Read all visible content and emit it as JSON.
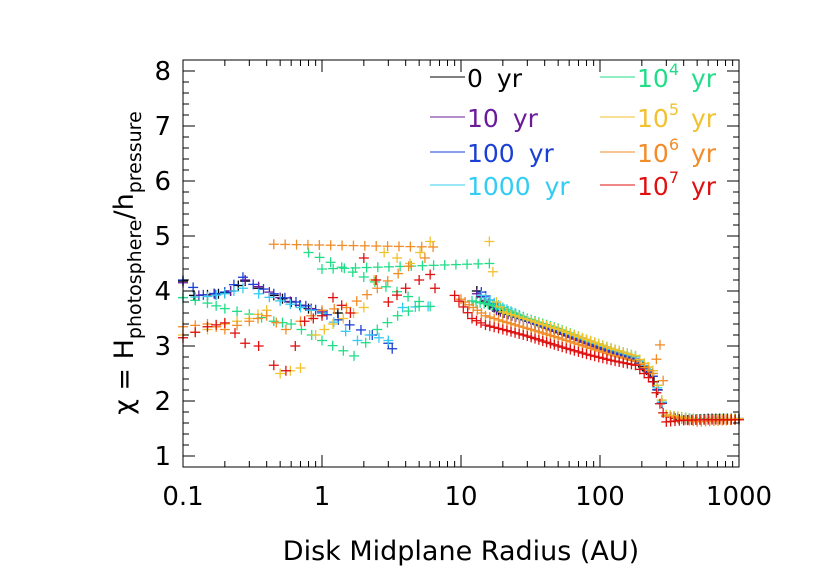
{
  "chart_data": {
    "type": "scatter",
    "title": "",
    "xlabel": "Disk Midplane Radius (AU)",
    "ylabel": {
      "prefix": "χ = H",
      "sub1": "photosphere",
      "slash": "/h",
      "sub2": "pressure"
    },
    "xscale": "log",
    "xlim": [
      0.1,
      1000
    ],
    "ylim": [
      0.8,
      8.2
    ],
    "xticks": [
      {
        "value": 0.1,
        "label": "0.1"
      },
      {
        "value": 1,
        "label": "1"
      },
      {
        "value": 10,
        "label": "10"
      },
      {
        "value": 100,
        "label": "100"
      },
      {
        "value": 1000,
        "label": "1000"
      }
    ],
    "yticks": [
      {
        "value": 1,
        "label": "1"
      },
      {
        "value": 2,
        "label": "2"
      },
      {
        "value": 3,
        "label": "3"
      },
      {
        "value": 4,
        "label": "4"
      },
      {
        "value": 5,
        "label": "5"
      },
      {
        "value": 6,
        "label": "6"
      },
      {
        "value": 7,
        "label": "7"
      },
      {
        "value": 8,
        "label": "8"
      }
    ],
    "legend_position": "top-right",
    "series": [
      {
        "name": "0 yr",
        "base": "0",
        "exp": "",
        "unit": "yr",
        "color": "#000000",
        "inner": [
          [
            0.1,
            4.18
          ],
          [
            0.12,
            3.92
          ],
          [
            0.15,
            3.93
          ],
          [
            0.18,
            3.95
          ],
          [
            0.2,
            3.97
          ],
          [
            0.22,
            4.0
          ],
          [
            0.25,
            4.1
          ],
          [
            0.28,
            4.18
          ],
          [
            0.35,
            4.05
          ],
          [
            0.45,
            3.92
          ],
          [
            0.6,
            3.8
          ],
          [
            0.8,
            3.68
          ],
          [
            1.0,
            3.6
          ],
          [
            1.3,
            3.6
          ]
        ],
        "outer": [
          [
            13,
            4.0
          ],
          [
            15,
            3.8
          ],
          [
            20,
            3.6
          ],
          [
            30,
            3.45
          ],
          [
            50,
            3.25
          ],
          [
            80,
            3.05
          ],
          [
            120,
            2.9
          ],
          [
            180,
            2.75
          ],
          [
            230,
            2.5
          ],
          [
            260,
            2.2
          ],
          [
            300,
            1.72
          ],
          [
            400,
            1.65
          ],
          [
            600,
            1.68
          ],
          [
            1000,
            1.68
          ]
        ]
      },
      {
        "name": "10 yr",
        "base": "10",
        "exp": "",
        "unit": "yr",
        "color": "#6a1b9a",
        "inner": [
          [
            0.1,
            4.15
          ],
          [
            0.13,
            3.92
          ],
          [
            0.17,
            3.94
          ],
          [
            0.22,
            4.0
          ],
          [
            0.28,
            4.2
          ],
          [
            0.35,
            4.08
          ],
          [
            0.5,
            3.88
          ],
          [
            0.7,
            3.74
          ],
          [
            1.0,
            3.62
          ]
        ],
        "outer": [
          [
            13,
            3.95
          ],
          [
            18,
            3.65
          ],
          [
            30,
            3.45
          ],
          [
            50,
            3.24
          ],
          [
            80,
            3.04
          ],
          [
            120,
            2.88
          ],
          [
            180,
            2.74
          ],
          [
            240,
            2.45
          ],
          [
            300,
            1.72
          ],
          [
            500,
            1.66
          ],
          [
            1000,
            1.68
          ]
        ]
      },
      {
        "name": "100 yr",
        "base": "100",
        "exp": "",
        "unit": "yr",
        "color": "#1a3fd4",
        "inner": [
          [
            0.1,
            4.2
          ],
          [
            0.14,
            3.93
          ],
          [
            0.2,
            3.98
          ],
          [
            0.27,
            4.25
          ],
          [
            0.32,
            4.12
          ],
          [
            0.45,
            3.95
          ],
          [
            0.65,
            3.8
          ],
          [
            0.9,
            3.66
          ],
          [
            2.3,
            3.2
          ],
          [
            3.0,
            3.05
          ],
          [
            3.2,
            2.95
          ]
        ],
        "outer": [
          [
            14,
            3.98
          ],
          [
            20,
            3.62
          ],
          [
            30,
            3.46
          ],
          [
            50,
            3.26
          ],
          [
            80,
            3.06
          ],
          [
            120,
            2.9
          ],
          [
            180,
            2.76
          ],
          [
            240,
            2.45
          ],
          [
            300,
            1.72
          ],
          [
            500,
            1.66
          ],
          [
            1000,
            1.68
          ]
        ]
      },
      {
        "name": "1000 yr",
        "base": "1000",
        "exp": "",
        "unit": "yr",
        "color": "#33ccf2",
        "inner": [
          [
            0.1,
            3.88
          ],
          [
            0.15,
            3.9
          ],
          [
            0.2,
            3.95
          ],
          [
            0.27,
            4.05
          ],
          [
            0.35,
            3.95
          ],
          [
            0.5,
            3.82
          ],
          [
            0.7,
            3.7
          ],
          [
            1.0,
            3.6
          ],
          [
            1.8,
            3.1
          ],
          [
            2.2,
            3.2
          ],
          [
            3.0,
            3.1
          ],
          [
            3.8,
            3.7
          ],
          [
            5.8,
            3.72
          ]
        ],
        "outer": [
          [
            14,
            3.92
          ],
          [
            20,
            3.7
          ],
          [
            30,
            3.5
          ],
          [
            50,
            3.3
          ],
          [
            80,
            3.1
          ],
          [
            120,
            2.94
          ],
          [
            180,
            2.8
          ],
          [
            240,
            2.5
          ],
          [
            300,
            1.72
          ],
          [
            500,
            1.67
          ],
          [
            1000,
            1.68
          ]
        ]
      },
      {
        "name": "10^4 yr",
        "base": "10",
        "exp": "4",
        "unit": "yr",
        "color": "#22dd88",
        "inner": [
          [
            0.1,
            3.88
          ],
          [
            0.15,
            3.78
          ],
          [
            0.2,
            3.68
          ],
          [
            0.3,
            3.58
          ],
          [
            0.45,
            3.45
          ],
          [
            0.6,
            3.4
          ],
          [
            1.0,
            3.1
          ],
          [
            1.7,
            2.82
          ],
          [
            2.5,
            3.3
          ],
          [
            3.5,
            3.55
          ],
          [
            5.0,
            3.72
          ],
          [
            6.0,
            3.72
          ],
          [
            0.8,
            4.7
          ],
          [
            1.0,
            4.4
          ],
          [
            16,
            4.5
          ]
        ],
        "outer": [
          [
            12,
            3.82
          ],
          [
            18,
            3.72
          ],
          [
            30,
            3.5
          ],
          [
            50,
            3.32
          ],
          [
            80,
            3.12
          ],
          [
            120,
            2.96
          ],
          [
            180,
            2.82
          ],
          [
            240,
            2.55
          ],
          [
            300,
            1.75
          ],
          [
            500,
            1.67
          ],
          [
            1000,
            1.68
          ]
        ]
      },
      {
        "name": "10^5 yr",
        "base": "10",
        "exp": "5",
        "unit": "yr",
        "color": "#f2c12e",
        "inner": [
          [
            0.1,
            3.2
          ],
          [
            0.15,
            3.3
          ],
          [
            0.2,
            3.4
          ],
          [
            0.3,
            3.5
          ],
          [
            0.4,
            3.65
          ],
          [
            0.5,
            2.5
          ],
          [
            0.7,
            2.6
          ],
          [
            0.9,
            3.2
          ],
          [
            1.2,
            3.4
          ],
          [
            2.0,
            3.7
          ],
          [
            2.8,
            4.7
          ],
          [
            4.3,
            4.5
          ],
          [
            6.0,
            4.9
          ]
        ],
        "outer": [
          [
            16,
            4.9
          ],
          [
            18,
            3.8
          ],
          [
            20,
            3.62
          ],
          [
            30,
            3.48
          ],
          [
            50,
            3.3
          ],
          [
            80,
            3.12
          ],
          [
            120,
            2.96
          ],
          [
            180,
            2.82
          ],
          [
            240,
            2.55
          ],
          [
            300,
            1.75
          ],
          [
            500,
            1.66
          ],
          [
            1000,
            1.68
          ]
        ]
      },
      {
        "name": "10^6 yr",
        "base": "10",
        "exp": "6",
        "unit": "yr",
        "color": "#f28c28",
        "inner": [
          [
            0.1,
            3.35
          ],
          [
            0.15,
            3.4
          ],
          [
            0.2,
            3.3
          ],
          [
            0.3,
            3.45
          ],
          [
            0.4,
            3.55
          ],
          [
            0.55,
            3.3
          ],
          [
            0.7,
            3.45
          ],
          [
            1.0,
            3.65
          ],
          [
            1.5,
            3.7
          ],
          [
            2.5,
            4.05
          ],
          [
            4.2,
            4.45
          ],
          [
            5.5,
            4.6
          ],
          [
            6.3,
            4.8
          ],
          [
            0.45,
            4.85
          ]
        ],
        "outer": [
          [
            10,
            3.85
          ],
          [
            15,
            3.55
          ],
          [
            20,
            3.45
          ],
          [
            30,
            3.32
          ],
          [
            50,
            3.15
          ],
          [
            80,
            2.98
          ],
          [
            120,
            2.84
          ],
          [
            180,
            2.72
          ],
          [
            240,
            2.5
          ],
          [
            270,
            3.02
          ],
          [
            300,
            1.72
          ],
          [
            500,
            1.62
          ],
          [
            1000,
            1.66
          ]
        ]
      },
      {
        "name": "10^7 yr",
        "base": "10",
        "exp": "7",
        "unit": "yr",
        "color": "#e01010",
        "inner": [
          [
            0.1,
            3.15
          ],
          [
            0.15,
            3.35
          ],
          [
            0.2,
            3.42
          ],
          [
            0.28,
            3.05
          ],
          [
            0.35,
            3.0
          ],
          [
            0.45,
            2.65
          ],
          [
            0.55,
            2.55
          ],
          [
            0.75,
            3.45
          ],
          [
            1.0,
            3.55
          ],
          [
            1.2,
            3.88
          ],
          [
            1.6,
            3.6
          ],
          [
            2.0,
            4.6
          ],
          [
            3.0,
            3.8
          ],
          [
            4.0,
            4.05
          ],
          [
            5.0,
            4.2
          ],
          [
            6.0,
            4.3
          ],
          [
            6.5,
            4.05
          ]
        ],
        "outer": [
          [
            9,
            3.92
          ],
          [
            12,
            3.5
          ],
          [
            15,
            3.38
          ],
          [
            20,
            3.3
          ],
          [
            30,
            3.18
          ],
          [
            50,
            3.0
          ],
          [
            80,
            2.85
          ],
          [
            120,
            2.74
          ],
          [
            180,
            2.65
          ],
          [
            240,
            2.35
          ],
          [
            270,
            1.95
          ],
          [
            300,
            1.62
          ],
          [
            400,
            1.65
          ],
          [
            600,
            1.66
          ],
          [
            1000,
            1.66
          ]
        ]
      }
    ]
  }
}
